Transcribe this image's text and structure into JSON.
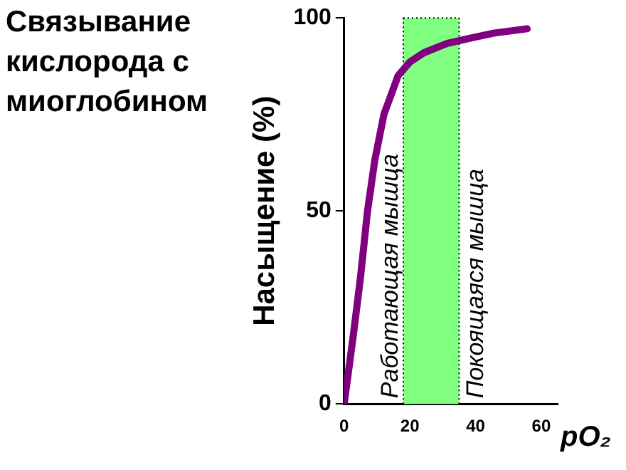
{
  "chart_data": {
    "type": "line",
    "title": "Связывание кислорода с миоглобином",
    "ylabel": "Насыщение (%)",
    "xlabel": "pO₂",
    "x": [
      0,
      2.9,
      5,
      7.1,
      9.3,
      12.1,
      16.4,
      20,
      24.3,
      31.4,
      38.6,
      45.7,
      55.7
    ],
    "series": [
      {
        "color": "#800080",
        "values": [
          0,
          18.5,
          33,
          49.9,
          63,
          75,
          85,
          88.6,
          91,
          93.4,
          94.8,
          96.1,
          97.2
        ]
      }
    ],
    "xlim": [
      0,
      65
    ],
    "xticks": [
      0,
      20,
      40,
      60
    ],
    "ylim": [
      0,
      100
    ],
    "yticks": [
      0,
      50,
      100
    ],
    "bands": [
      {
        "axis": "x",
        "from": 18,
        "to": 35,
        "color": "#80ff80"
      }
    ],
    "ref_lines": [
      {
        "axis": "x",
        "value": 18,
        "label": "Работающая мышца",
        "line_style": "dotted"
      },
      {
        "axis": "x",
        "value": 35,
        "label": "Покоящаяся мышца",
        "line_style": "dotted"
      }
    ],
    "grid": false,
    "legend": false,
    "marker": "none",
    "line_style": "solid"
  }
}
